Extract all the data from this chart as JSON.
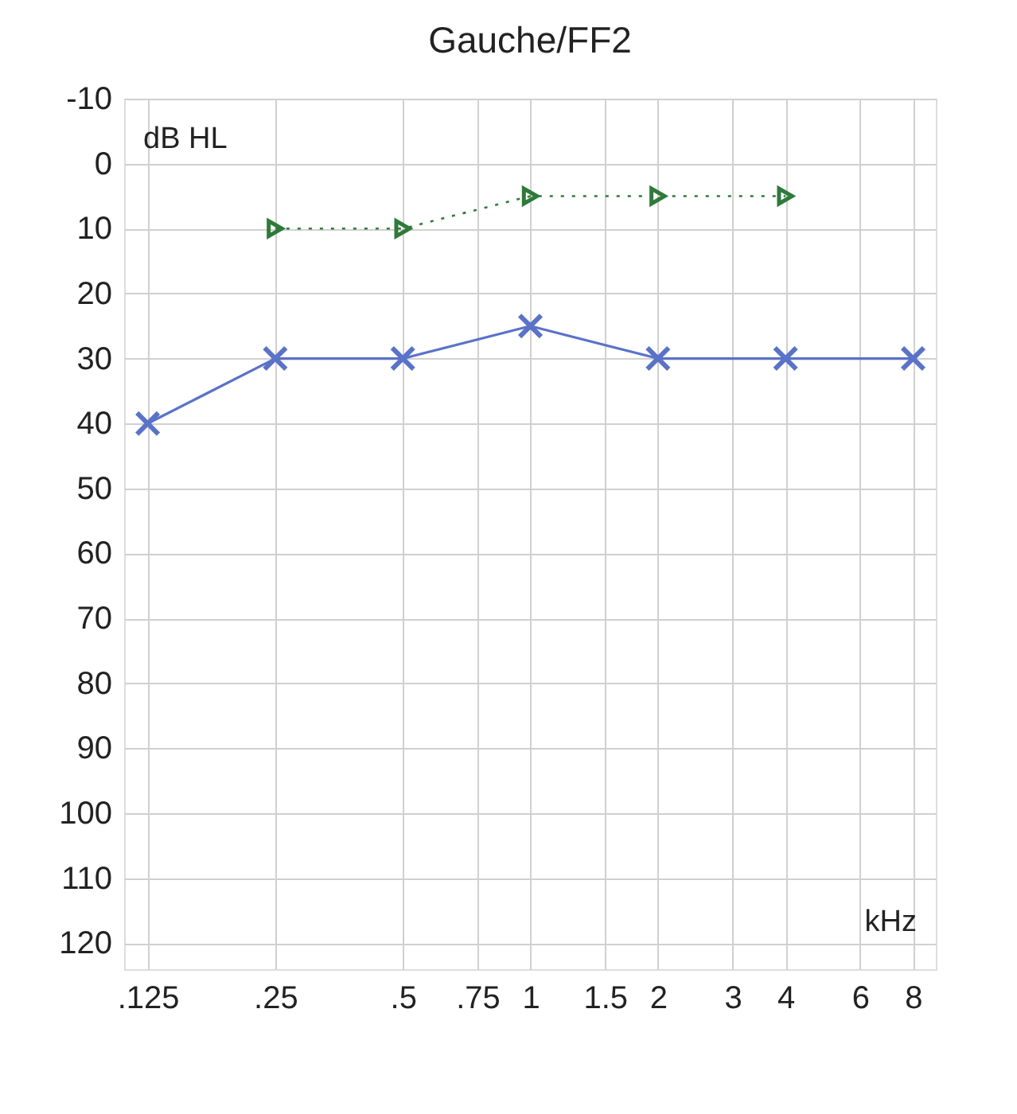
{
  "chart_data": {
    "type": "line",
    "title": "Gauche/FF2",
    "xlabel": "kHz",
    "ylabel": "dB HL",
    "log": "x",
    "xlim": [
      0.11,
      9.05
    ],
    "xticks": [
      {
        "value": 0.125,
        "label": ".125"
      },
      {
        "value": 0.25,
        "label": ".25"
      },
      {
        "value": 0.5,
        "label": ".5"
      },
      {
        "value": 0.75,
        "label": ".75"
      },
      1,
      {
        "value": 1.5,
        "label": "1.5"
      },
      2,
      3,
      4,
      6,
      8
    ],
    "ylim": [
      124,
      -10
    ],
    "yticks": [
      -10,
      0,
      10,
      20,
      30,
      40,
      50,
      60,
      70,
      80,
      90,
      100,
      110,
      120
    ],
    "grid": true,
    "series": [
      {
        "color": "#5a72c8",
        "marker": "cross",
        "line_style": "solid",
        "x": [
          0.125,
          0.25,
          0.5,
          1,
          2,
          4,
          8
        ],
        "values": [
          40,
          30,
          30,
          25,
          30,
          30,
          30
        ]
      },
      {
        "color": "#2f7a3a",
        "marker": "triangle",
        "line_style": "dotted",
        "x": [
          0.25,
          0.5,
          1,
          2,
          4
        ],
        "values": [
          10,
          10,
          5,
          5,
          5
        ]
      }
    ]
  }
}
